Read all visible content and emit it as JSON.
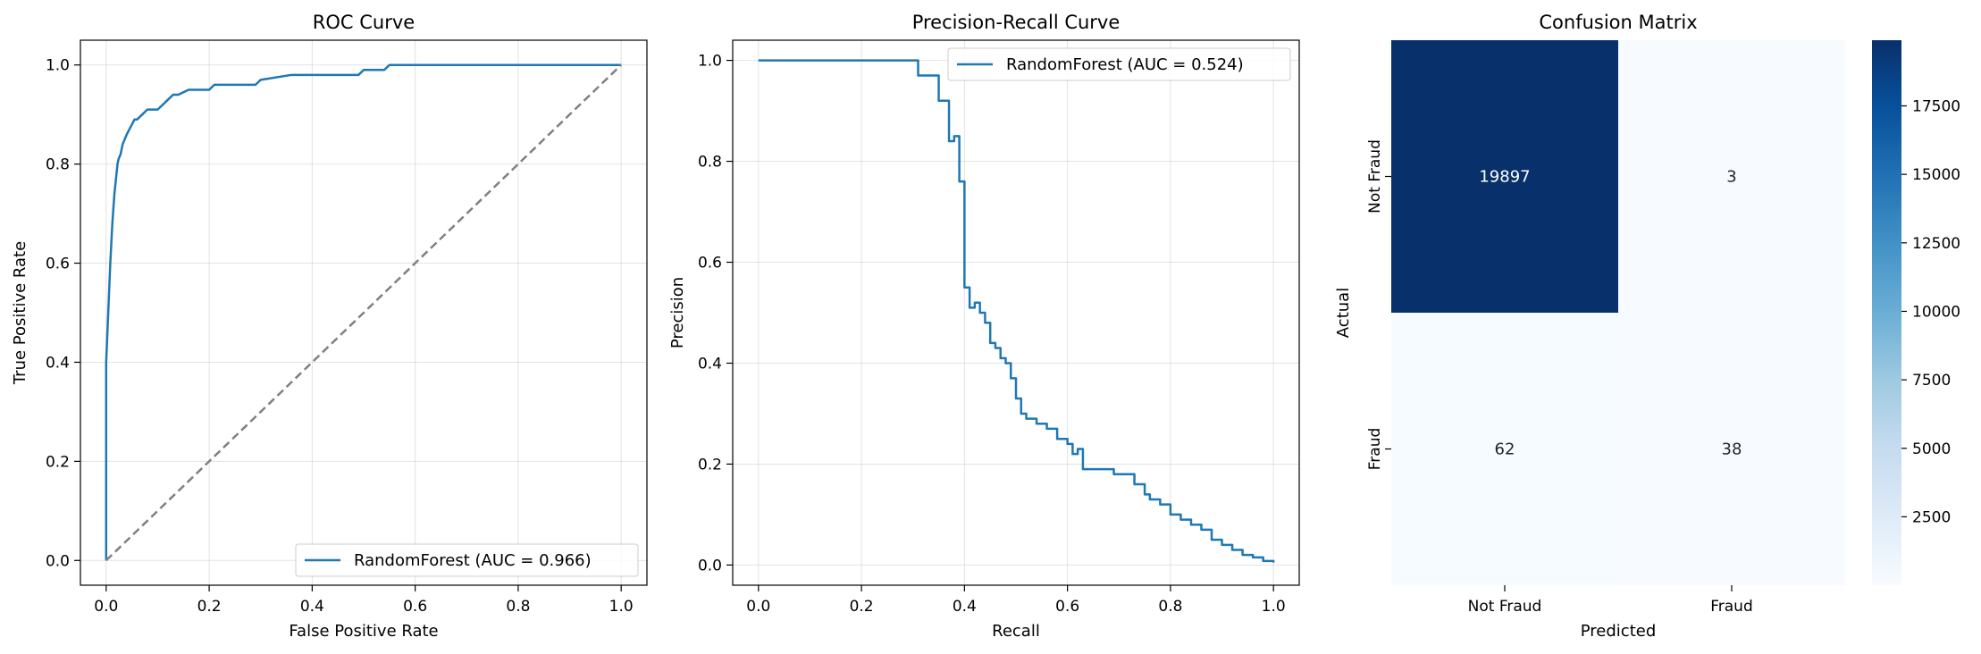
{
  "chart_data": [
    {
      "type": "line",
      "title": "ROC Curve",
      "xlabel": "False Positive Rate",
      "ylabel": "True Positive Rate",
      "xlim": [
        -0.05,
        1.05
      ],
      "ylim": [
        -0.05,
        1.05
      ],
      "xticks": [
        "0.0",
        "0.2",
        "0.4",
        "0.6",
        "0.8",
        "1.0"
      ],
      "yticks": [
        "0.0",
        "0.2",
        "0.4",
        "0.6",
        "0.8",
        "1.0"
      ],
      "grid": true,
      "legend_position": "lower-right",
      "series": [
        {
          "name": "RandomForest (AUC = 0.966)",
          "color": "#1f77b4",
          "style": "solid",
          "x": [
            0.0,
            0.0,
            0.002,
            0.004,
            0.006,
            0.008,
            0.01,
            0.012,
            0.014,
            0.016,
            0.018,
            0.02,
            0.022,
            0.024,
            0.028,
            0.032,
            0.036,
            0.04,
            0.045,
            0.05,
            0.055,
            0.06,
            0.07,
            0.08,
            0.1,
            0.11,
            0.12,
            0.13,
            0.14,
            0.16,
            0.2,
            0.21,
            0.29,
            0.3,
            0.36,
            0.49,
            0.5,
            0.54,
            0.55,
            0.99,
            1.0
          ],
          "y": [
            0.0,
            0.4,
            0.45,
            0.5,
            0.55,
            0.6,
            0.64,
            0.68,
            0.71,
            0.74,
            0.76,
            0.78,
            0.8,
            0.81,
            0.82,
            0.84,
            0.85,
            0.86,
            0.87,
            0.88,
            0.89,
            0.89,
            0.9,
            0.91,
            0.91,
            0.92,
            0.93,
            0.94,
            0.94,
            0.95,
            0.95,
            0.96,
            0.96,
            0.97,
            0.98,
            0.98,
            0.99,
            0.99,
            1.0,
            1.0,
            1.0
          ]
        },
        {
          "name": "",
          "color": "#808080",
          "style": "dashed",
          "x": [
            0.0,
            1.0
          ],
          "y": [
            0.0,
            1.0
          ]
        }
      ]
    },
    {
      "type": "line",
      "title": "Precision-Recall Curve",
      "xlabel": "Recall",
      "ylabel": "Precision",
      "xlim": [
        -0.05,
        1.05
      ],
      "ylim": [
        -0.04,
        1.04
      ],
      "xticks": [
        "0.0",
        "0.2",
        "0.4",
        "0.6",
        "0.8",
        "1.0"
      ],
      "yticks": [
        "0.0",
        "0.2",
        "0.4",
        "0.6",
        "0.8",
        "1.0"
      ],
      "grid": true,
      "legend_position": "top-right",
      "series": [
        {
          "name": "RandomForest (AUC = 0.524)",
          "color": "#1f77b4",
          "style": "step",
          "x": [
            0.0,
            0.31,
            0.32,
            0.35,
            0.37,
            0.38,
            0.39,
            0.4,
            0.41,
            0.42,
            0.43,
            0.44,
            0.45,
            0.46,
            0.47,
            0.48,
            0.49,
            0.5,
            0.51,
            0.52,
            0.53,
            0.54,
            0.56,
            0.58,
            0.6,
            0.61,
            0.62,
            0.63,
            0.65,
            0.69,
            0.71,
            0.73,
            0.75,
            0.76,
            0.78,
            0.8,
            0.82,
            0.84,
            0.86,
            0.88,
            0.9,
            0.92,
            0.94,
            0.96,
            0.98,
            1.0
          ],
          "y": [
            1.0,
            0.97,
            0.97,
            0.92,
            0.84,
            0.85,
            0.76,
            0.55,
            0.51,
            0.52,
            0.5,
            0.48,
            0.44,
            0.43,
            0.41,
            0.4,
            0.37,
            0.33,
            0.3,
            0.29,
            0.29,
            0.28,
            0.27,
            0.25,
            0.24,
            0.22,
            0.23,
            0.19,
            0.19,
            0.18,
            0.18,
            0.16,
            0.14,
            0.13,
            0.12,
            0.1,
            0.09,
            0.08,
            0.07,
            0.05,
            0.04,
            0.03,
            0.02,
            0.015,
            0.008,
            0.005
          ]
        }
      ]
    },
    {
      "type": "heatmap",
      "title": "Confusion Matrix",
      "xlabel": "Predicted",
      "ylabel": "Actual",
      "x_categories": [
        "Not Fraud",
        "Fraud"
      ],
      "y_categories": [
        "Not Fraud",
        "Fraud"
      ],
      "values": [
        [
          19897,
          3
        ],
        [
          62,
          38
        ]
      ],
      "colormap": "Blues",
      "colorbar_range": [
        3,
        19897
      ],
      "colorbar_ticks": [
        "2500",
        "5000",
        "7500",
        "10000",
        "12500",
        "15000",
        "17500"
      ]
    }
  ]
}
